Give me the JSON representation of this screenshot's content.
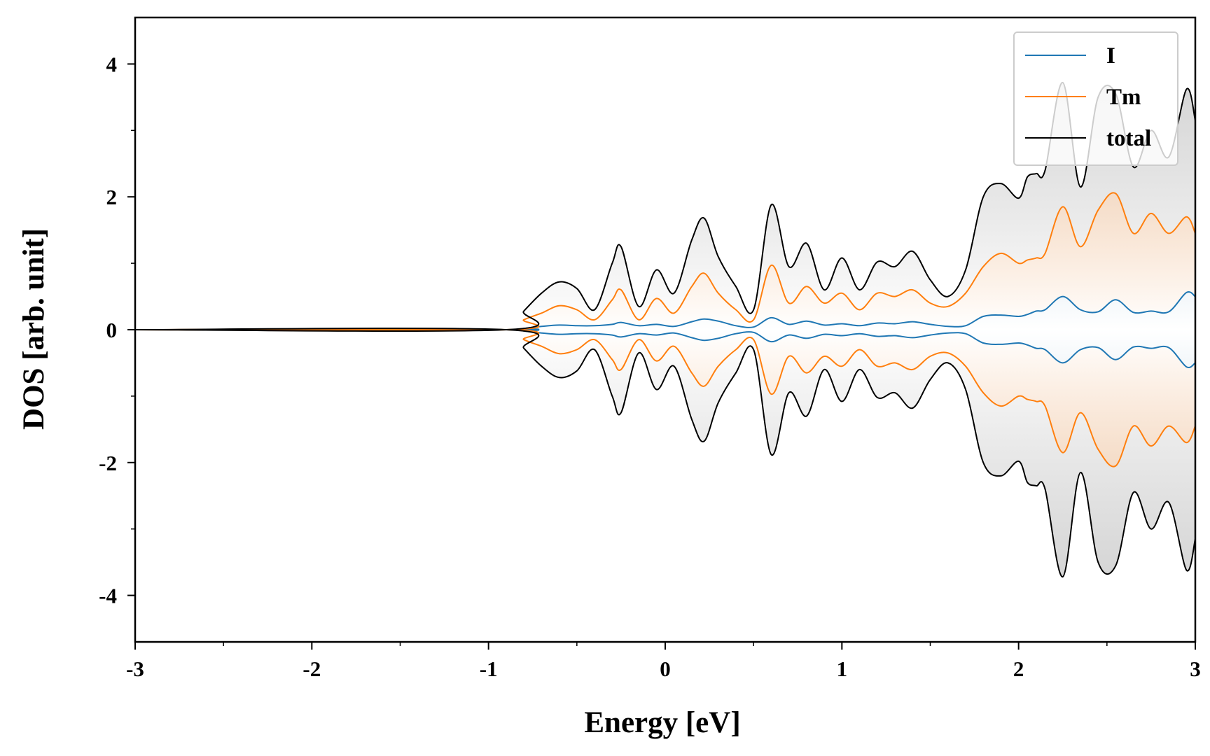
{
  "chart_data": {
    "type": "line",
    "title": "",
    "xlabel": "Energy [eV]",
    "ylabel": "DOS [arb. unit]",
    "xlim": [
      -3,
      3
    ],
    "ylim": [
      -4.7,
      4.7
    ],
    "xticks": [
      -3,
      -2,
      -1,
      0,
      1,
      2,
      3
    ],
    "xtick_labels": [
      "-3",
      "-2",
      "-1",
      "0",
      "1",
      "2",
      "3"
    ],
    "yticks": [
      -4,
      -2,
      0,
      2,
      4
    ],
    "ytick_labels": [
      "-4",
      "-2",
      "0",
      "2",
      "4"
    ],
    "mirrored_spin_channels": true,
    "legend": {
      "position": "top-right",
      "entries": [
        "I",
        "Tm",
        "total"
      ]
    },
    "series": [
      {
        "name": "I",
        "color": "#1f77b4",
        "x": [
          -3.0,
          -0.9,
          -0.8,
          -0.7,
          -0.6,
          -0.5,
          -0.4,
          -0.3,
          -0.25,
          -0.15,
          -0.05,
          0.05,
          0.15,
          0.22,
          0.3,
          0.4,
          0.5,
          0.6,
          0.7,
          0.8,
          0.9,
          1.0,
          1.1,
          1.2,
          1.3,
          1.4,
          1.5,
          1.6,
          1.7,
          1.8,
          1.9,
          2.0,
          2.05,
          2.1,
          2.15,
          2.25,
          2.35,
          2.45,
          2.55,
          2.65,
          2.75,
          2.85,
          2.95,
          3.0
        ],
        "values": [
          0.0,
          0.0,
          0.02,
          0.05,
          0.07,
          0.06,
          0.06,
          0.08,
          0.11,
          0.06,
          0.08,
          0.05,
          0.12,
          0.16,
          0.13,
          0.06,
          0.04,
          0.18,
          0.08,
          0.13,
          0.07,
          0.09,
          0.06,
          0.1,
          0.09,
          0.12,
          0.08,
          0.05,
          0.06,
          0.2,
          0.22,
          0.2,
          0.23,
          0.28,
          0.3,
          0.5,
          0.3,
          0.27,
          0.45,
          0.26,
          0.28,
          0.27,
          0.56,
          0.5
        ]
      },
      {
        "name": "Tm",
        "color": "#ff7f0e",
        "x": [
          -3.0,
          -0.9,
          -0.8,
          -0.7,
          -0.6,
          -0.5,
          -0.4,
          -0.3,
          -0.25,
          -0.15,
          -0.05,
          0.05,
          0.15,
          0.22,
          0.3,
          0.4,
          0.5,
          0.6,
          0.7,
          0.8,
          0.9,
          1.0,
          1.1,
          1.2,
          1.3,
          1.4,
          1.5,
          1.6,
          1.7,
          1.8,
          1.9,
          2.0,
          2.05,
          2.1,
          2.15,
          2.25,
          2.35,
          2.45,
          2.55,
          2.65,
          2.75,
          2.85,
          2.95,
          3.0
        ],
        "values": [
          0.0,
          0.0,
          0.15,
          0.25,
          0.36,
          0.3,
          0.15,
          0.45,
          0.6,
          0.15,
          0.47,
          0.25,
          0.65,
          0.85,
          0.55,
          0.3,
          0.15,
          0.97,
          0.4,
          0.65,
          0.4,
          0.55,
          0.3,
          0.55,
          0.5,
          0.6,
          0.4,
          0.35,
          0.55,
          0.95,
          1.15,
          1.0,
          1.05,
          1.08,
          1.15,
          1.85,
          1.25,
          1.8,
          2.05,
          1.45,
          1.75,
          1.45,
          1.7,
          1.45
        ]
      },
      {
        "name": "total",
        "color": "#000000",
        "x": [
          -3.0,
          -0.9,
          -0.8,
          -0.7,
          -0.6,
          -0.5,
          -0.4,
          -0.3,
          -0.25,
          -0.15,
          -0.05,
          0.05,
          0.15,
          0.22,
          0.3,
          0.4,
          0.5,
          0.6,
          0.7,
          0.8,
          0.9,
          1.0,
          1.1,
          1.2,
          1.3,
          1.4,
          1.5,
          1.6,
          1.7,
          1.8,
          1.9,
          2.0,
          2.05,
          2.1,
          2.15,
          2.25,
          2.35,
          2.45,
          2.55,
          2.65,
          2.75,
          2.85,
          2.95,
          3.0
        ],
        "values": [
          0.0,
          0.0,
          0.28,
          0.55,
          0.72,
          0.62,
          0.3,
          1.0,
          1.25,
          0.35,
          0.9,
          0.55,
          1.35,
          1.68,
          1.1,
          0.65,
          0.3,
          1.88,
          0.95,
          1.3,
          0.6,
          1.08,
          0.6,
          1.02,
          0.95,
          1.18,
          0.75,
          0.5,
          0.9,
          2.0,
          2.2,
          1.98,
          2.3,
          2.35,
          2.4,
          3.72,
          2.15,
          3.5,
          3.55,
          2.45,
          3.0,
          2.6,
          3.62,
          3.15
        ]
      }
    ]
  }
}
